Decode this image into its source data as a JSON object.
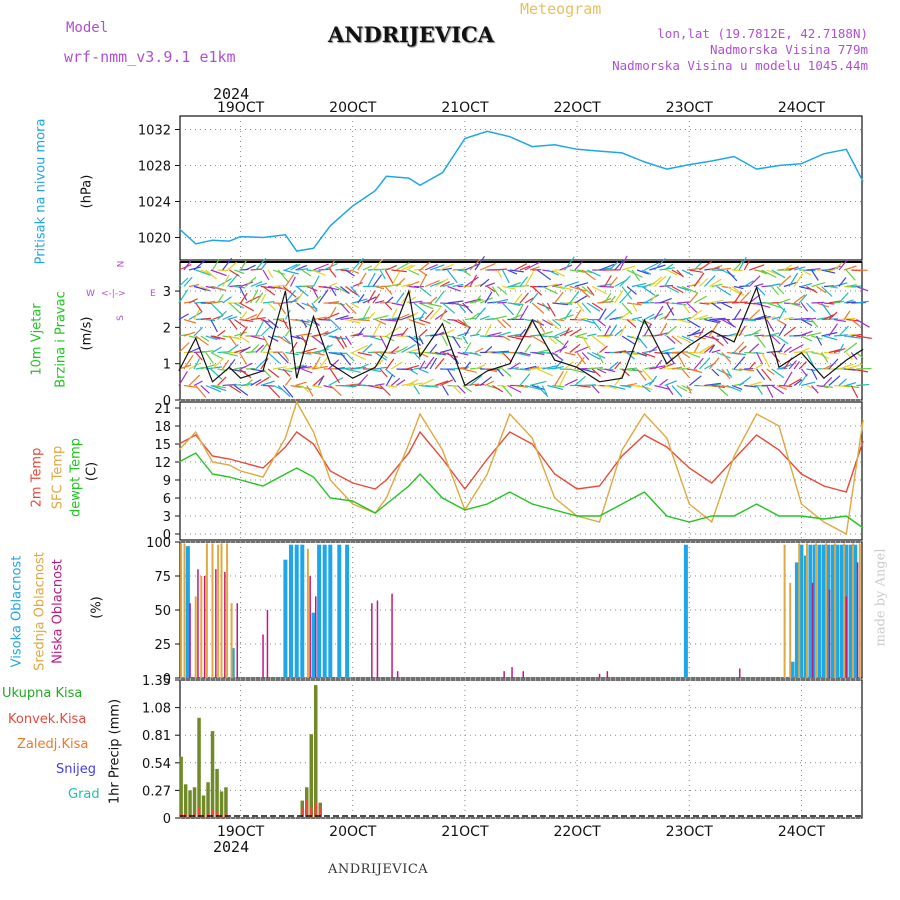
{
  "header": {
    "model_label": "Model",
    "model_name": "wrf-nmm_v3.9.1  e1km",
    "title": "ANDRIJEVICA",
    "meteogram": "Meteogram",
    "lonlat": "lon,lat (19.7812E, 42.7188N)",
    "altitude": "Nadmorska Visina 779m",
    "model_altitude": "Nadmorska Visina u modelu 1045.44m",
    "year_top": "2024",
    "year_bottom": "2024",
    "footer": "ANDRIJEVICA",
    "credit": "made by Angel"
  },
  "colors": {
    "pressure": "#1ea7e8",
    "model": "#b04fd6",
    "meteogram": "#e8c060",
    "temp2m": "#e84a3a",
    "sfc": "#e0a840",
    "dewpt": "#22c422",
    "high_cloud": "#1ea7e8",
    "mid_cloud": "#e0a840",
    "low_cloud": "#c01880",
    "total_precip": "#22aa22",
    "convective": "#e84a3a",
    "frozen": "#f07828",
    "snow": "#4040e0",
    "graupel": "#20c0b0"
  },
  "panel_labels": {
    "pressure": {
      "name": "Pritisak na nivou mora",
      "unit": "(hPa)"
    },
    "wind": {
      "name1": "10m Vjetar",
      "name2": "Brzina i Pravac",
      "unit": "(m/s)",
      "compass_w": "W",
      "compass_e": "E",
      "compass_arrows": "<-|->",
      "compass_n": "N",
      "compass_s": "S"
    },
    "temp": {
      "name1": "2m Temp",
      "name2": "SFC Temp",
      "name3": "dewpt Temp",
      "unit": "(C)"
    },
    "cloud": {
      "name1": "Visoka Oblacnost",
      "name2": "Srednja Oblacnost",
      "name3": "Niska Oblacnost",
      "unit": "(%)"
    },
    "precip": {
      "unit": "1hr Precip (mm)",
      "legend": [
        "Ukupna Kisa",
        "Konvek.Kisa",
        "Zaledj.Kisa",
        "Snijeg",
        "Grad"
      ]
    }
  },
  "chart_data": [
    {
      "type": "line",
      "name": "pressure",
      "ylim": [
        1017.5,
        1033.5
      ],
      "yticks": [
        "1020",
        "1024",
        "1028",
        "1032"
      ],
      "x_days": [
        18.45,
        18.6,
        18.75,
        18.9,
        19.0,
        19.2,
        19.4,
        19.5,
        19.65,
        19.8,
        20.0,
        20.2,
        20.3,
        20.5,
        20.6,
        20.8,
        21.0,
        21.2,
        21.4,
        21.6,
        21.8,
        22.0,
        22.2,
        22.4,
        22.6,
        22.8,
        23.0,
        23.2,
        23.4,
        23.6,
        23.8,
        24.0,
        24.2,
        24.4,
        24.55
      ],
      "values": [
        1021,
        1019.3,
        1019.7,
        1019.6,
        1020.1,
        1020.0,
        1020.3,
        1018.5,
        1018.8,
        1021.3,
        1023.5,
        1025.2,
        1026.8,
        1026.6,
        1025.8,
        1027.2,
        1031.0,
        1031.8,
        1031.2,
        1030.1,
        1030.3,
        1029.8,
        1029.6,
        1029.4,
        1028.4,
        1027.6,
        1028.1,
        1028.5,
        1029.0,
        1027.6,
        1028.0,
        1028.2,
        1029.3,
        1029.8,
        1026.2
      ]
    },
    {
      "type": "line",
      "name": "wind_speed",
      "ylim": [
        0,
        3.8
      ],
      "yticks": [
        "0",
        "1",
        "2",
        "3"
      ],
      "x_days": [
        18.45,
        18.6,
        18.75,
        18.9,
        19.0,
        19.2,
        19.4,
        19.5,
        19.65,
        19.8,
        20.0,
        20.2,
        20.3,
        20.5,
        20.6,
        20.8,
        21.0,
        21.2,
        21.4,
        21.6,
        21.8,
        22.0,
        22.2,
        22.4,
        22.6,
        22.8,
        23.0,
        23.2,
        23.4,
        23.6,
        23.8,
        24.0,
        24.2,
        24.4,
        24.55
      ],
      "values": [
        0.8,
        1.7,
        0.5,
        0.9,
        0.6,
        0.8,
        3.0,
        0.6,
        2.3,
        1.0,
        0.6,
        0.9,
        1.4,
        3.0,
        1.2,
        2.1,
        0.4,
        0.8,
        1.0,
        2.2,
        1.1,
        0.9,
        0.5,
        0.6,
        2.2,
        1.0,
        1.5,
        1.9,
        1.6,
        3.1,
        0.9,
        1.3,
        0.6,
        1.1,
        1.4
      ]
    },
    {
      "type": "line",
      "name": "temperature",
      "ylim": [
        -1,
        22
      ],
      "yticks": [
        "0",
        "3",
        "6",
        "9",
        "12",
        "15",
        "18",
        "21"
      ],
      "x_days": [
        18.45,
        18.6,
        18.75,
        18.9,
        19.0,
        19.2,
        19.4,
        19.5,
        19.65,
        19.8,
        20.0,
        20.2,
        20.3,
        20.5,
        20.6,
        20.8,
        21.0,
        21.2,
        21.4,
        21.6,
        21.8,
        22.0,
        22.2,
        22.4,
        22.6,
        22.8,
        23.0,
        23.2,
        23.4,
        23.6,
        23.8,
        24.0,
        24.2,
        24.4,
        24.55
      ],
      "series": [
        {
          "name": "2m Temp",
          "values": [
            15,
            16.5,
            13,
            12.5,
            12,
            11,
            14.5,
            17,
            15,
            10.5,
            8.5,
            7.5,
            9,
            13.5,
            17,
            12.5,
            7.5,
            12.5,
            17,
            15,
            10,
            7.5,
            8,
            13,
            16.5,
            14.5,
            11,
            8.5,
            12.5,
            16.5,
            14,
            10,
            8,
            7,
            15.5
          ]
        },
        {
          "name": "SFC Temp",
          "values": [
            14,
            17,
            12,
            11.5,
            10.5,
            9.5,
            16,
            22,
            17,
            9,
            5,
            3.5,
            6,
            15,
            20,
            14,
            4,
            10,
            20,
            16,
            6,
            3,
            2,
            14,
            20,
            16,
            5,
            2,
            13,
            20,
            18,
            5,
            2,
            0,
            19
          ]
        },
        {
          "name": "dewpt Temp",
          "values": [
            12,
            13.5,
            10,
            9.5,
            9,
            8,
            10,
            11,
            9.5,
            6,
            5.5,
            3.5,
            5,
            8,
            10,
            6,
            4,
            5,
            7,
            5,
            4,
            3,
            3,
            5,
            7,
            3,
            2,
            3,
            3,
            5,
            3,
            3,
            2.5,
            3,
            1
          ]
        }
      ]
    },
    {
      "type": "bar",
      "name": "cloud_cover",
      "ylim": [
        0,
        100
      ],
      "yticks": [
        "0",
        "25",
        "50",
        "75",
        "100"
      ],
      "series": [
        {
          "name": "high",
          "x_days": [
            18.53,
            18.93,
            19.4,
            19.45,
            19.5,
            19.55,
            19.65,
            19.7,
            19.75,
            19.8,
            19.88,
            19.95,
            22.97,
            23.92,
            23.96,
            24.0,
            24.04,
            24.08,
            24.12,
            24.16,
            24.2,
            24.24,
            24.28,
            24.32,
            24.36,
            24.4,
            24.44,
            24.48
          ],
          "values": [
            97,
            22,
            87,
            98,
            98,
            98,
            48,
            98,
            98,
            98,
            98,
            98,
            98,
            12,
            85,
            98,
            90,
            98,
            98,
            98,
            98,
            98,
            98,
            98,
            98,
            98,
            98,
            98
          ]
        },
        {
          "name": "mid",
          "x_days": [
            18.47,
            18.5,
            18.6,
            18.65,
            18.7,
            18.75,
            18.8,
            18.83,
            18.88,
            18.92,
            19.6,
            23.85,
            23.9,
            23.98,
            24.05,
            24.13,
            24.22,
            24.3,
            24.38,
            24.46,
            24.52
          ],
          "values": [
            99,
            99,
            60,
            75,
            99,
            99,
            98,
            99,
            99,
            55,
            95,
            98,
            70,
            99,
            99,
            99,
            99,
            99,
            99,
            99,
            99
          ]
        },
        {
          "name": "low",
          "x_days": [
            18.55,
            18.62,
            18.68,
            18.78,
            18.86,
            18.97,
            19.2,
            19.24,
            19.62,
            19.67,
            20.17,
            20.22,
            20.35,
            20.4,
            21.35,
            21.42,
            21.52,
            22.2,
            22.27,
            23.45,
            24.1,
            24.25,
            24.4,
            24.5
          ],
          "values": [
            55,
            80,
            75,
            80,
            78,
            55,
            32,
            50,
            75,
            60,
            55,
            57,
            62,
            5,
            5,
            8,
            5,
            3,
            5,
            7,
            70,
            65,
            60,
            85
          ]
        }
      ]
    },
    {
      "type": "bar",
      "name": "precipitation",
      "ylim": [
        0,
        1.35
      ],
      "yticks": [
        "0",
        "0.27",
        "0.54",
        "0.81",
        "1.08",
        "1.35"
      ],
      "x_days": [
        18.47,
        18.51,
        18.55,
        18.59,
        18.63,
        18.67,
        18.71,
        18.75,
        18.79,
        18.83,
        18.87,
        18.91,
        18.95,
        19.55,
        19.59,
        19.63,
        19.67,
        19.71
      ],
      "series": [
        {
          "name": "Ukupna Kisa",
          "values": [
            0.6,
            0.33,
            0.27,
            0.3,
            0.98,
            0.22,
            0.35,
            0.85,
            0.48,
            0.26,
            0.3,
            0,
            0,
            0.17,
            0.3,
            0.82,
            1.3,
            0.15
          ]
        },
        {
          "name": "Konvek.Kisa",
          "values": [
            0.05,
            0.04,
            0.03,
            0.04,
            0.1,
            0.03,
            0.04,
            0.08,
            0.06,
            0.03,
            0.04,
            0,
            0,
            0.1,
            0.18,
            0.1,
            0.15,
            0.1
          ]
        }
      ]
    }
  ],
  "x_axis": {
    "day_labels": [
      "19OCT",
      "20OCT",
      "21OCT",
      "22OCT",
      "23OCT",
      "24OCT"
    ],
    "day_values": [
      19,
      20,
      21,
      22,
      23,
      24
    ],
    "xlim": [
      18.46,
      24.54
    ]
  }
}
